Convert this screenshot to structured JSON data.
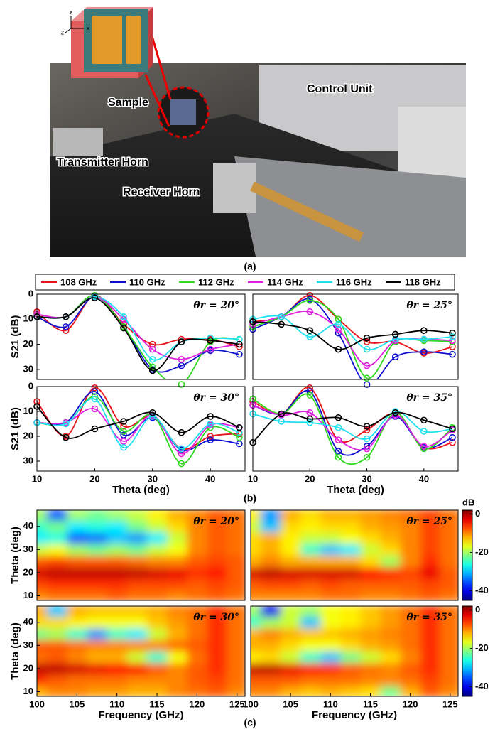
{
  "figure_a": {
    "axes": [
      "y",
      "z",
      "x"
    ],
    "labels": [
      "Sample",
      "Control Unit",
      "Transmitter Horn",
      "Receiver Horn"
    ],
    "caption": "(a)"
  },
  "caption_b": "(b)",
  "caption_c": "(c)",
  "chart_data": [
    {
      "type": "line",
      "annotation": "θr = 20°",
      "ylabel": "S21 (dB)",
      "x": [
        10,
        15,
        20,
        25,
        30,
        35,
        40,
        45
      ],
      "xlim": [
        10,
        46
      ],
      "ylim": [
        34,
        0
      ],
      "yticks": [
        0,
        10,
        20,
        30
      ],
      "series": [
        {
          "name": "108 GHz",
          "color": "#e8141c",
          "values": [
            7,
            14.5,
            0.5,
            12,
            20,
            18,
            18,
            21
          ]
        },
        {
          "name": "110 GHz",
          "color": "#1010d0",
          "values": [
            9,
            13,
            1,
            13,
            30,
            28.5,
            22.5,
            24
          ]
        },
        {
          "name": "112 GHz",
          "color": "#30d820",
          "values": [
            8,
            9,
            0.5,
            13,
            29,
            36,
            19,
            18
          ]
        },
        {
          "name": "114 GHz",
          "color": "#e020e0",
          "values": [
            8,
            9,
            1,
            10,
            22,
            26,
            22,
            20
          ]
        },
        {
          "name": "116 GHz",
          "color": "#20e0f0",
          "values": [
            9,
            9,
            1,
            9,
            26,
            19,
            17.5,
            18
          ]
        },
        {
          "name": "118 GHz",
          "color": "#000000",
          "values": [
            9,
            9,
            1.5,
            13.5,
            30.5,
            19,
            18.5,
            20
          ]
        }
      ]
    },
    {
      "type": "line",
      "annotation": "θr = 25°",
      "x": [
        10,
        15,
        20,
        25,
        30,
        35,
        40,
        45
      ],
      "xlim": [
        10,
        46
      ],
      "ylim": [
        34,
        0
      ],
      "series": [
        {
          "name": "108 GHz",
          "color": "#e8141c",
          "values": [
            11,
            9,
            0.5,
            10,
            19,
            19,
            23.5,
            21
          ]
        },
        {
          "name": "110 GHz",
          "color": "#1010d0",
          "values": [
            14,
            9,
            2,
            15.5,
            36,
            25,
            23,
            24
          ]
        },
        {
          "name": "112 GHz",
          "color": "#30d820",
          "values": [
            13,
            9,
            2.5,
            10,
            33.5,
            19,
            18.5,
            19
          ]
        },
        {
          "name": "114 GHz",
          "color": "#e020e0",
          "values": [
            12,
            9,
            7,
            14,
            28.5,
            18.5,
            18,
            18.5
          ]
        },
        {
          "name": "116 GHz",
          "color": "#20e0f0",
          "values": [
            10,
            9,
            17,
            12,
            22,
            18,
            18,
            17
          ]
        },
        {
          "name": "118 GHz",
          "color": "#000000",
          "values": [
            11,
            12,
            14.5,
            22,
            17.5,
            16,
            14.5,
            15.5
          ]
        }
      ]
    },
    {
      "type": "line",
      "annotation": "θr = 30°",
      "ylabel": "S21 (dB)",
      "xlabel": "Theta (deg)",
      "x": [
        10,
        15,
        20,
        25,
        30,
        35,
        40,
        45
      ],
      "xlim": [
        10,
        46
      ],
      "ylim": [
        34,
        0
      ],
      "yticks": [
        0,
        10,
        20,
        30
      ],
      "xticks": [
        10,
        20,
        30,
        40
      ],
      "series": [
        {
          "name": "108 GHz",
          "color": "#e8141c",
          "values": [
            6,
            20,
            0.5,
            16,
            12,
            25,
            20,
            19
          ]
        },
        {
          "name": "110 GHz",
          "color": "#1010d0",
          "values": [
            14.5,
            14.5,
            2,
            19.5,
            12.5,
            25.5,
            21.5,
            23
          ]
        },
        {
          "name": "112 GHz",
          "color": "#30d820",
          "values": [
            14.5,
            15,
            4,
            18,
            11.5,
            31,
            16.5,
            20.5
          ]
        },
        {
          "name": "114 GHz",
          "color": "#e020e0",
          "values": [
            14.5,
            14.5,
            9,
            22,
            11.5,
            27,
            15.5,
            16.5
          ]
        },
        {
          "name": "116 GHz",
          "color": "#20e0f0",
          "values": [
            14.5,
            15,
            5,
            24.5,
            12,
            25,
            15,
            18.5
          ]
        },
        {
          "name": "118 GHz",
          "color": "#000000",
          "values": [
            8,
            20.5,
            17,
            14,
            10.5,
            18.5,
            12,
            16.5
          ]
        }
      ]
    },
    {
      "type": "line",
      "annotation": "θr = 35°",
      "xlabel": "Theta (deg)",
      "x": [
        10,
        15,
        20,
        25,
        30,
        35,
        40,
        45
      ],
      "xlim": [
        10,
        46
      ],
      "ylim": [
        34,
        0
      ],
      "xticks": [
        10,
        20,
        30,
        40
      ],
      "series": [
        {
          "name": "108 GHz",
          "color": "#e8141c",
          "values": [
            6,
            11,
            0.5,
            21.5,
            17.5,
            11,
            24.5,
            22.5
          ]
        },
        {
          "name": "110 GHz",
          "color": "#1010d0",
          "values": [
            7.5,
            11,
            2,
            26,
            24,
            12,
            24.5,
            20.5
          ]
        },
        {
          "name": "112 GHz",
          "color": "#30d820",
          "values": [
            5,
            11,
            3.5,
            28.5,
            28.5,
            10.5,
            25,
            16.5
          ]
        },
        {
          "name": "114 GHz",
          "color": "#e020e0",
          "values": [
            7.5,
            11.5,
            10.5,
            21.5,
            25,
            11.5,
            24,
            17.5
          ]
        },
        {
          "name": "116 GHz",
          "color": "#20e0f0",
          "values": [
            11,
            14,
            14.5,
            16.5,
            21,
            10,
            18,
            17
          ]
        },
        {
          "name": "118 GHz",
          "color": "#000000",
          "values": [
            22.5,
            11,
            13,
            12.5,
            16,
            10.5,
            13.5,
            17
          ]
        }
      ]
    },
    {
      "type": "heatmap",
      "annotation": "θr = 20°",
      "ylabel": "Theta (deg)",
      "x": [
        100,
        102.5,
        105,
        107.5,
        110,
        112.5,
        115,
        117.5,
        120,
        122.5,
        125
      ],
      "y": [
        10,
        15,
        20,
        25,
        30,
        35,
        40,
        45
      ],
      "xlim": [
        100,
        126
      ],
      "ylim": [
        8,
        47
      ],
      "zlim": [
        -45,
        2
      ],
      "yticks": [
        10,
        20,
        30,
        40
      ],
      "z": [
        [
          -10,
          -9,
          -9,
          -9,
          -8,
          -9,
          -9,
          -10,
          -9,
          -8,
          -9
        ],
        [
          -7,
          -6,
          -6,
          -6,
          -6,
          -7,
          -7,
          -7,
          -8,
          -7,
          -8
        ],
        [
          -2,
          -1,
          -1,
          -1,
          -1,
          -1,
          -2,
          -3,
          -6,
          -5,
          -8
        ],
        [
          -8,
          -7,
          -8,
          -8,
          -8,
          -9,
          -10,
          -10,
          -8,
          -7,
          -8
        ],
        [
          -18,
          -16,
          -20,
          -22,
          -20,
          -22,
          -18,
          -16,
          -10,
          -8,
          -9
        ],
        [
          -28,
          -26,
          -35,
          -34,
          -30,
          -32,
          -28,
          -18,
          -10,
          -8,
          -9
        ],
        [
          -25,
          -22,
          -28,
          -26,
          -28,
          -22,
          -18,
          -14,
          -10,
          -8,
          -9
        ],
        [
          -20,
          -35,
          -20,
          -22,
          -20,
          -18,
          -15,
          -12,
          -10,
          -8,
          -9
        ]
      ]
    },
    {
      "type": "heatmap",
      "annotation": "θr = 25°",
      "x": [
        100,
        102.5,
        105,
        107.5,
        110,
        112.5,
        115,
        117.5,
        120,
        122.5,
        125
      ],
      "y": [
        10,
        15,
        20,
        25,
        30,
        35,
        40,
        45
      ],
      "xlim": [
        100,
        126
      ],
      "ylim": [
        8,
        47
      ],
      "zlim": [
        -45,
        2
      ],
      "colorbar": {
        "label": "dB",
        "ticks": [
          0,
          -20,
          -40
        ]
      },
      "z": [
        [
          -10,
          -10,
          -10,
          -10,
          -9,
          -9,
          -10,
          -10,
          -9,
          -8,
          -9
        ],
        [
          -8,
          -7,
          -7,
          -8,
          -7,
          -8,
          -8,
          -8,
          -8,
          -7,
          -8
        ],
        [
          -2,
          -1,
          -2,
          -2,
          -2,
          -2,
          -4,
          -6,
          -7,
          -3,
          -8
        ],
        [
          -12,
          -10,
          -12,
          -12,
          -12,
          -12,
          -14,
          -20,
          -10,
          -6,
          -9
        ],
        [
          -14,
          -12,
          -15,
          -25,
          -30,
          -28,
          -18,
          -14,
          -10,
          -7,
          -9
        ],
        [
          -14,
          -12,
          -15,
          -18,
          -18,
          -16,
          -14,
          -12,
          -10,
          -7,
          -9
        ],
        [
          -18,
          -30,
          -14,
          -15,
          -14,
          -14,
          -12,
          -11,
          -10,
          -7,
          -9
        ],
        [
          -15,
          -32,
          -12,
          -14,
          -12,
          -12,
          -11,
          -10,
          -9,
          -7,
          -9
        ]
      ]
    },
    {
      "type": "heatmap",
      "annotation": "θr = 30°",
      "ylabel": "Theta (deg)",
      "xlabel": "Frequency (GHz)",
      "x": [
        100,
        102.5,
        105,
        107.5,
        110,
        112.5,
        115,
        117.5,
        120,
        122.5,
        125
      ],
      "y": [
        10,
        15,
        20,
        25,
        30,
        35,
        40,
        45
      ],
      "xlim": [
        100,
        126
      ],
      "ylim": [
        8,
        47
      ],
      "zlim": [
        -45,
        2
      ],
      "yticks": [
        10,
        20,
        30,
        40
      ],
      "xticks": [
        100,
        105,
        110,
        115,
        120,
        125
      ],
      "z": [
        [
          -12,
          -10,
          -10,
          -11,
          -11,
          -12,
          -12,
          -10,
          -9,
          -8,
          -10
        ],
        [
          -6,
          -8,
          -9,
          -9,
          -9,
          -10,
          -10,
          -10,
          -8,
          -7,
          -9
        ],
        [
          -1,
          -1,
          -2,
          -3,
          -4,
          -4,
          -8,
          -10,
          -8,
          -6,
          -9
        ],
        [
          -9,
          -8,
          -10,
          -12,
          -12,
          -18,
          -25,
          -16,
          -9,
          -6,
          -9
        ],
        [
          -8,
          -8,
          -9,
          -10,
          -10,
          -10,
          -10,
          -9,
          -8,
          -6,
          -9
        ],
        [
          -22,
          -20,
          -25,
          -32,
          -25,
          -28,
          -18,
          -12,
          -9,
          -6,
          -9
        ],
        [
          -14,
          -14,
          -15,
          -16,
          -16,
          -16,
          -13,
          -11,
          -9,
          -6,
          -9
        ],
        [
          -12,
          -30,
          -12,
          -13,
          -13,
          -13,
          -12,
          -10,
          -9,
          -6,
          -9
        ]
      ]
    },
    {
      "type": "heatmap",
      "annotation": "θr = 35°",
      "xlabel": "Frequency (GHz)",
      "x": [
        100,
        102.5,
        105,
        107.5,
        110,
        112.5,
        115,
        117.5,
        120,
        122.5,
        125
      ],
      "y": [
        10,
        15,
        20,
        25,
        30,
        35,
        40,
        45
      ],
      "xlim": [
        100,
        126
      ],
      "ylim": [
        8,
        47
      ],
      "zlim": [
        -45,
        2
      ],
      "xticks": [
        100,
        105,
        110,
        115,
        120,
        125
      ],
      "colorbar": {
        "ticks": [
          0,
          -20,
          -40
        ]
      },
      "z": [
        [
          -10,
          -10,
          -12,
          -13,
          -12,
          -13,
          -14,
          -22,
          -12,
          -8,
          -10
        ],
        [
          -8,
          -8,
          -8,
          -9,
          -9,
          -9,
          -10,
          -10,
          -9,
          -7,
          -9
        ],
        [
          -1,
          -1,
          -3,
          -5,
          -6,
          -8,
          -9,
          -10,
          -8,
          -6,
          -9
        ],
        [
          -15,
          -14,
          -18,
          -25,
          -30,
          -22,
          -18,
          -14,
          -10,
          -6,
          -9
        ],
        [
          -12,
          -12,
          -14,
          -16,
          -16,
          -14,
          -12,
          -11,
          -9,
          -6,
          -9
        ],
        [
          -12,
          -10,
          -12,
          -13,
          -13,
          -12,
          -11,
          -10,
          -9,
          -6,
          -9
        ],
        [
          -25,
          -20,
          -18,
          -30,
          -16,
          -15,
          -13,
          -11,
          -9,
          -6,
          -9
        ],
        [
          -20,
          -40,
          -18,
          -20,
          -16,
          -15,
          -13,
          -11,
          -9,
          -6,
          -9
        ]
      ]
    }
  ]
}
